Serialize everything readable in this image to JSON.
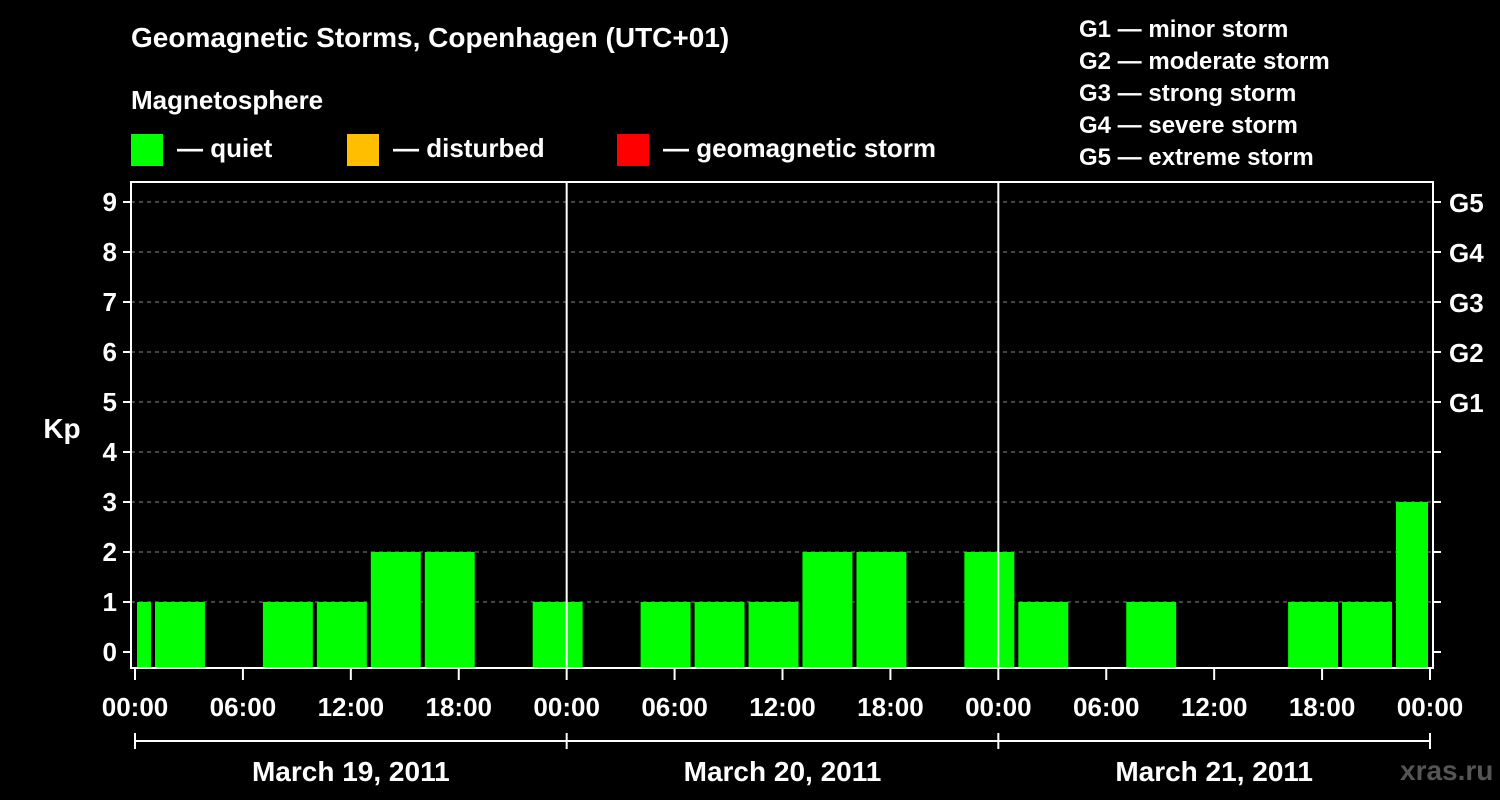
{
  "title": "Geomagnetic Storms, Copenhagen (UTC+01)",
  "legend": {
    "heading": "Magnetosphere",
    "items": [
      {
        "label": "— quiet",
        "color": "#00ff00"
      },
      {
        "label": "— disturbed",
        "color": "#ffbf00"
      },
      {
        "label": "— geomagnetic storm",
        "color": "#ff0000"
      }
    ]
  },
  "storm_scale": [
    "G1 — minor storm",
    "G2 — moderate storm",
    "G3 — strong storm",
    "G4 — severe storm",
    "G5 — extreme storm"
  ],
  "watermark": "xras.ru",
  "chart_data": {
    "type": "bar",
    "ylabel": "Kp",
    "ylim": [
      0,
      9
    ],
    "y_ticks": [
      0,
      1,
      2,
      3,
      4,
      5,
      6,
      7,
      8,
      9
    ],
    "right_ticks": [
      {
        "kp": 5,
        "label": "G1"
      },
      {
        "kp": 6,
        "label": "G2"
      },
      {
        "kp": 7,
        "label": "G3"
      },
      {
        "kp": 8,
        "label": "G4"
      },
      {
        "kp": 9,
        "label": "G5"
      }
    ],
    "x_hours_range": [
      0,
      72
    ],
    "x_tick_labels": [
      "00:00",
      "06:00",
      "12:00",
      "18:00",
      "00:00",
      "06:00",
      "12:00",
      "18:00",
      "00:00",
      "06:00",
      "12:00",
      "18:00",
      "00:00"
    ],
    "days": [
      "March 19, 2011",
      "March 20, 2011",
      "March 21, 2011"
    ],
    "grid": true,
    "bar_color": "#00ff00",
    "bars": [
      {
        "start_h": 0,
        "end_h": 1,
        "kp": 1
      },
      {
        "start_h": 1,
        "end_h": 4,
        "kp": 1
      },
      {
        "start_h": 4,
        "end_h": 7,
        "kp": 0
      },
      {
        "start_h": 7,
        "end_h": 10,
        "kp": 1
      },
      {
        "start_h": 10,
        "end_h": 13,
        "kp": 1
      },
      {
        "start_h": 13,
        "end_h": 16,
        "kp": 2
      },
      {
        "start_h": 16,
        "end_h": 19,
        "kp": 2
      },
      {
        "start_h": 19,
        "end_h": 22,
        "kp": 0
      },
      {
        "start_h": 22,
        "end_h": 25,
        "kp": 1
      },
      {
        "start_h": 25,
        "end_h": 28,
        "kp": 0
      },
      {
        "start_h": 28,
        "end_h": 31,
        "kp": 1
      },
      {
        "start_h": 31,
        "end_h": 34,
        "kp": 1
      },
      {
        "start_h": 34,
        "end_h": 37,
        "kp": 1
      },
      {
        "start_h": 37,
        "end_h": 40,
        "kp": 2
      },
      {
        "start_h": 40,
        "end_h": 43,
        "kp": 2
      },
      {
        "start_h": 43,
        "end_h": 46,
        "kp": 0
      },
      {
        "start_h": 46,
        "end_h": 49,
        "kp": 2
      },
      {
        "start_h": 49,
        "end_h": 52,
        "kp": 1
      },
      {
        "start_h": 52,
        "end_h": 55,
        "kp": 0
      },
      {
        "start_h": 55,
        "end_h": 58,
        "kp": 1
      },
      {
        "start_h": 58,
        "end_h": 61,
        "kp": 0
      },
      {
        "start_h": 61,
        "end_h": 64,
        "kp": 0
      },
      {
        "start_h": 64,
        "end_h": 67,
        "kp": 1
      },
      {
        "start_h": 67,
        "end_h": 70,
        "kp": 1
      },
      {
        "start_h": 70,
        "end_h": 72,
        "kp": 3
      }
    ]
  }
}
